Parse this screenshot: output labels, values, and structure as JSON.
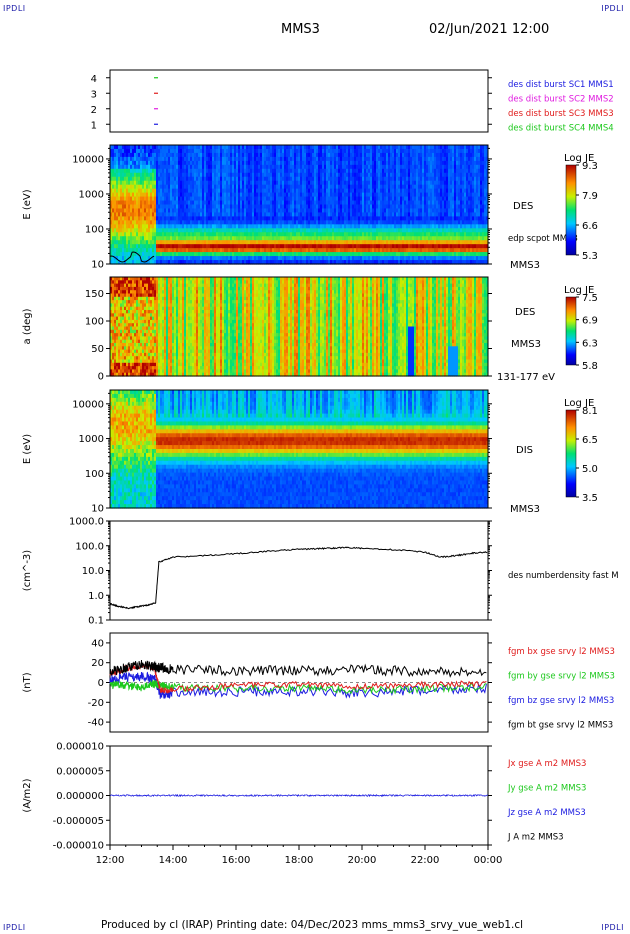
{
  "corners": {
    "tl": "IPDLI",
    "tr": "IPDLI",
    "bl": "IPDLI",
    "br": "IPDLI"
  },
  "header": {
    "spacecraft": "MMS3",
    "datetime": "02/Jun/2021 12:00"
  },
  "footer": {
    "text": "Produced by cl (IRAP)   Printing date: 04/Dec/2023   mms_mms3_srvy_vue_web1.cl"
  },
  "colors": {
    "mms1": "#1c1ce0",
    "mms2": "#e01ce0",
    "mms3": "#e01c1c",
    "mms4": "#1cc81c",
    "bx": "#e01c1c",
    "by": "#1cc81c",
    "bz": "#1c1ce0",
    "bt": "#000000"
  },
  "chart_data": [
    {
      "type": "scatter",
      "panel": "burst",
      "yticks": [
        "1",
        "2",
        "3",
        "4"
      ],
      "ylim": [
        0.5,
        4.5
      ],
      "series": [
        {
          "name": "des dist burst SC1 MMS1",
          "y": 1
        },
        {
          "name": "des dist burst SC2 MMS2",
          "y": 2
        },
        {
          "name": "des dist burst SC3 MMS3",
          "y": 3
        },
        {
          "name": "des dist burst SC4 MMS4",
          "y": 4
        }
      ]
    },
    {
      "type": "heatmap",
      "panel": "des-energy",
      "ylabel": "E (eV)",
      "yticks": [
        "10",
        "100",
        "1000",
        "10000"
      ],
      "ylim": [
        10,
        25000
      ],
      "log_y": true,
      "right_labels": [
        "DES",
        "edp scpot MMS3",
        "MMS3"
      ],
      "colorbar": {
        "title": "Log JE",
        "ticks": [
          "9.3",
          "7.9",
          "6.6",
          "5.3"
        ],
        "range": [
          5.3,
          9.3
        ]
      }
    },
    {
      "type": "heatmap",
      "panel": "des-pitch",
      "ylabel": "a (deg)",
      "yticks": [
        "0",
        "50",
        "100",
        "150"
      ],
      "ylim": [
        0,
        180
      ],
      "right_labels": [
        "DES",
        "MMS3",
        "131-177 eV"
      ],
      "colorbar": {
        "title": "Log JE",
        "ticks": [
          "7.5",
          "6.9",
          "6.3",
          "5.8"
        ],
        "range": [
          5.8,
          7.5
        ]
      }
    },
    {
      "type": "heatmap",
      "panel": "dis-energy",
      "ylabel": "E (eV)",
      "yticks": [
        "10",
        "100",
        "1000",
        "10000"
      ],
      "ylim": [
        10,
        25000
      ],
      "log_y": true,
      "right_labels": [
        "DIS",
        "MMS3"
      ],
      "colorbar": {
        "title": "Log JE",
        "ticks": [
          "8.1",
          "6.5",
          "5.0",
          "3.5"
        ],
        "range": [
          3.5,
          8.1
        ]
      }
    },
    {
      "type": "line",
      "panel": "density",
      "ylabel": "(cm^-3)",
      "yticks": [
        "0.1",
        "1.0",
        "10.0",
        "100.0",
        "1000.0"
      ],
      "ylim": [
        0.1,
        1000
      ],
      "log_y": true,
      "series": [
        {
          "name": "des numberdensity fast M",
          "x": [
            12.0,
            12.3,
            12.6,
            12.9,
            13.2,
            13.45,
            13.55,
            14.0,
            15.0,
            16.0,
            17.0,
            18.0,
            18.5,
            19.0,
            19.5,
            20.0,
            21.0,
            22.0,
            22.5,
            23.0,
            23.5,
            24.0
          ],
          "y": [
            0.45,
            0.35,
            0.3,
            0.35,
            0.4,
            0.5,
            22,
            35,
            40,
            48,
            60,
            72,
            75,
            80,
            85,
            78,
            70,
            55,
            35,
            40,
            50,
            55
          ]
        }
      ]
    },
    {
      "type": "line",
      "panel": "magnetic-field",
      "ylabel": "(nT)",
      "yticks": [
        "-40",
        "-20",
        "0",
        "20",
        "40"
      ],
      "ylim": [
        -50,
        50
      ],
      "series": [
        {
          "name": "fgm bx gse srvy l2 MMS3",
          "x": [
            12.0,
            12.5,
            13.0,
            13.4,
            13.6,
            14.0,
            16.0,
            18.0,
            20.0,
            22.0,
            24.0
          ],
          "y": [
            8,
            14,
            17,
            15,
            -8,
            -7,
            -3,
            -2,
            -4,
            -2,
            -1
          ]
        },
        {
          "name": "fgm by gse srvy l2 MMS3",
          "x": [
            12.0,
            12.5,
            13.0,
            13.4,
            13.6,
            14.0,
            16.0,
            18.0,
            20.0,
            22.0,
            24.0
          ],
          "y": [
            -2,
            -3,
            -5,
            -1,
            -3,
            -5,
            -6,
            -6,
            -8,
            -6,
            -4
          ]
        },
        {
          "name": "fgm bz gse srvy l2 MMS3",
          "x": [
            12.0,
            12.5,
            13.0,
            13.4,
            13.6,
            14.0,
            16.0,
            18.0,
            20.0,
            22.0,
            24.0
          ],
          "y": [
            3,
            5,
            6,
            4,
            -12,
            -10,
            -9,
            -9,
            -11,
            -8,
            -6
          ]
        },
        {
          "name": "fgm bt gse srvy l2 MMS3",
          "x": [
            12.0,
            12.5,
            13.0,
            13.4,
            13.6,
            14.0,
            16.0,
            18.0,
            20.0,
            22.0,
            24.0
          ],
          "y": [
            11,
            15,
            18,
            16,
            15,
            13,
            12,
            12,
            13,
            11,
            10
          ]
        }
      ]
    },
    {
      "type": "line",
      "panel": "current-density",
      "ylabel": "(A/m2)",
      "yticks": [
        "-0.000010",
        "-0.000005",
        "0.000000",
        "0.000005",
        "0.000010"
      ],
      "ylim": [
        -1e-05,
        1e-05
      ],
      "series": [
        {
          "name": "Jx gse A m2 MMS3",
          "x": [
            12,
            24
          ],
          "y": [
            0,
            0
          ]
        },
        {
          "name": "Jy gse A m2 MMS3",
          "x": [
            12,
            24
          ],
          "y": [
            0,
            0
          ]
        },
        {
          "name": "Jz gse A m2 MMS3",
          "x": [
            12,
            24
          ],
          "y": [
            0,
            0
          ]
        },
        {
          "name": "J A m2 MMS3",
          "x": [
            12,
            24
          ],
          "y": [
            0,
            0
          ]
        }
      ]
    }
  ],
  "xaxis": {
    "ticks": [
      "12:00",
      "14:00",
      "16:00",
      "18:00",
      "20:00",
      "22:00",
      "00:00"
    ],
    "xlim": [
      12,
      24
    ]
  }
}
